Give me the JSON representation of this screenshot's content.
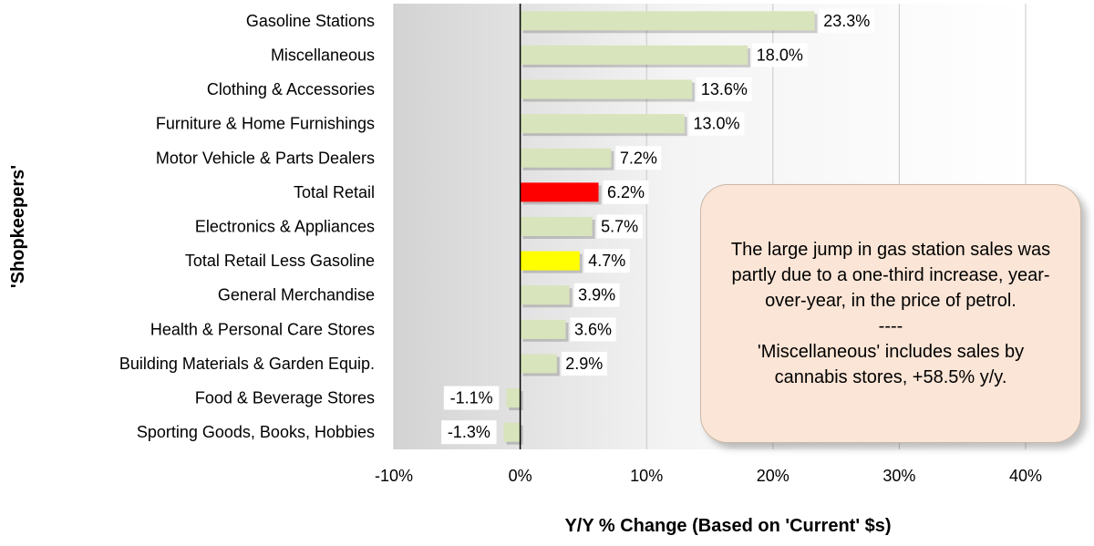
{
  "chart_data": {
    "type": "bar",
    "orientation": "horizontal",
    "categories": [
      "Gasoline Stations",
      "Miscellaneous",
      "Clothing & Accessories",
      "Furniture & Home Furnishings",
      "Motor Vehicle & Parts Dealers",
      "Total Retail ",
      "Electronics & Appliances",
      "Total Retail Less Gasoline",
      "General Merchandise",
      "Health & Personal Care Stores",
      "Building Materials & Garden Equip.",
      "Food & Beverage Stores",
      "Sporting Goods, Books, Hobbies"
    ],
    "values": [
      23.3,
      18.0,
      13.6,
      13.0,
      7.2,
      6.2,
      5.7,
      4.7,
      3.9,
      3.6,
      2.9,
      -1.1,
      -1.3
    ],
    "value_labels": [
      "23.3%",
      "18.0%",
      "13.6%",
      "13.0%",
      "7.2%",
      "6.2%",
      "5.7%",
      "4.7%",
      "3.9%",
      "3.6%",
      "2.9%",
      "-1.1%",
      "-1.3%"
    ],
    "bar_colors": [
      "#d8e4bc",
      "#d8e4bc",
      "#d8e4bc",
      "#d8e4bc",
      "#d8e4bc",
      "#ff0000",
      "#d8e4bc",
      "#ffff00",
      "#d8e4bc",
      "#d8e4bc",
      "#d8e4bc",
      "#d8e4bc",
      "#d8e4bc"
    ],
    "xlim": [
      -10,
      40
    ],
    "xticks": [
      -10,
      0,
      10,
      20,
      30,
      40
    ],
    "xtick_labels": [
      "-10%",
      "0%",
      "10%",
      "20%",
      "30%",
      "40%"
    ],
    "xlabel": "Y/Y % Change (Based on 'Current' $s)",
    "ylabel": "'Shopkeepers'",
    "grid": "vertical",
    "plot_background": "gradient gray to white"
  },
  "callout": {
    "text": "The large jump in gas station sales was partly due to a one-third increase, year-over-year, in the price of petrol.",
    "separator": "----",
    "text2": "'Miscellaneous' includes sales by cannabis stores, +58.5% y/y."
  }
}
